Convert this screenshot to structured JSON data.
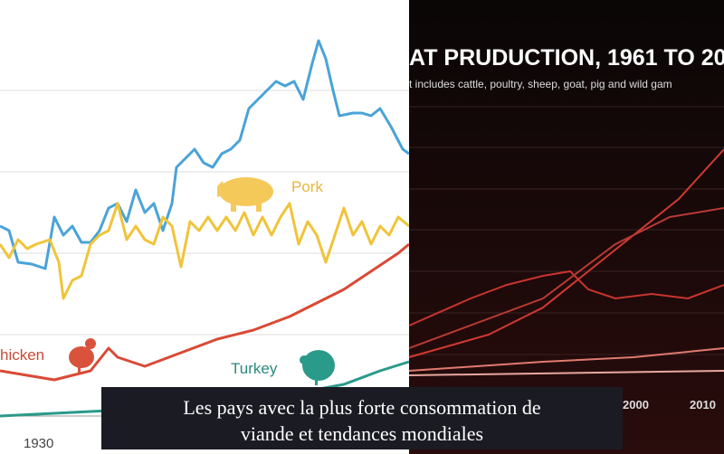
{
  "left_panel": {
    "labels": {
      "pork": "Pork",
      "chicken": "hicken",
      "turkey": "Turkey"
    },
    "axis_label": "1930"
  },
  "right_panel": {
    "title": "AT PRUDUCTION, 1961 TO 20",
    "subtitle": "t includes cattle, poultry, sheep, goat, pig and wild gam",
    "axis_labels": [
      "2000",
      "2010"
    ]
  },
  "caption": {
    "lines": [
      "Les pays avec la plus forte consommation de",
      "viande et tendances mondiales"
    ]
  }
}
